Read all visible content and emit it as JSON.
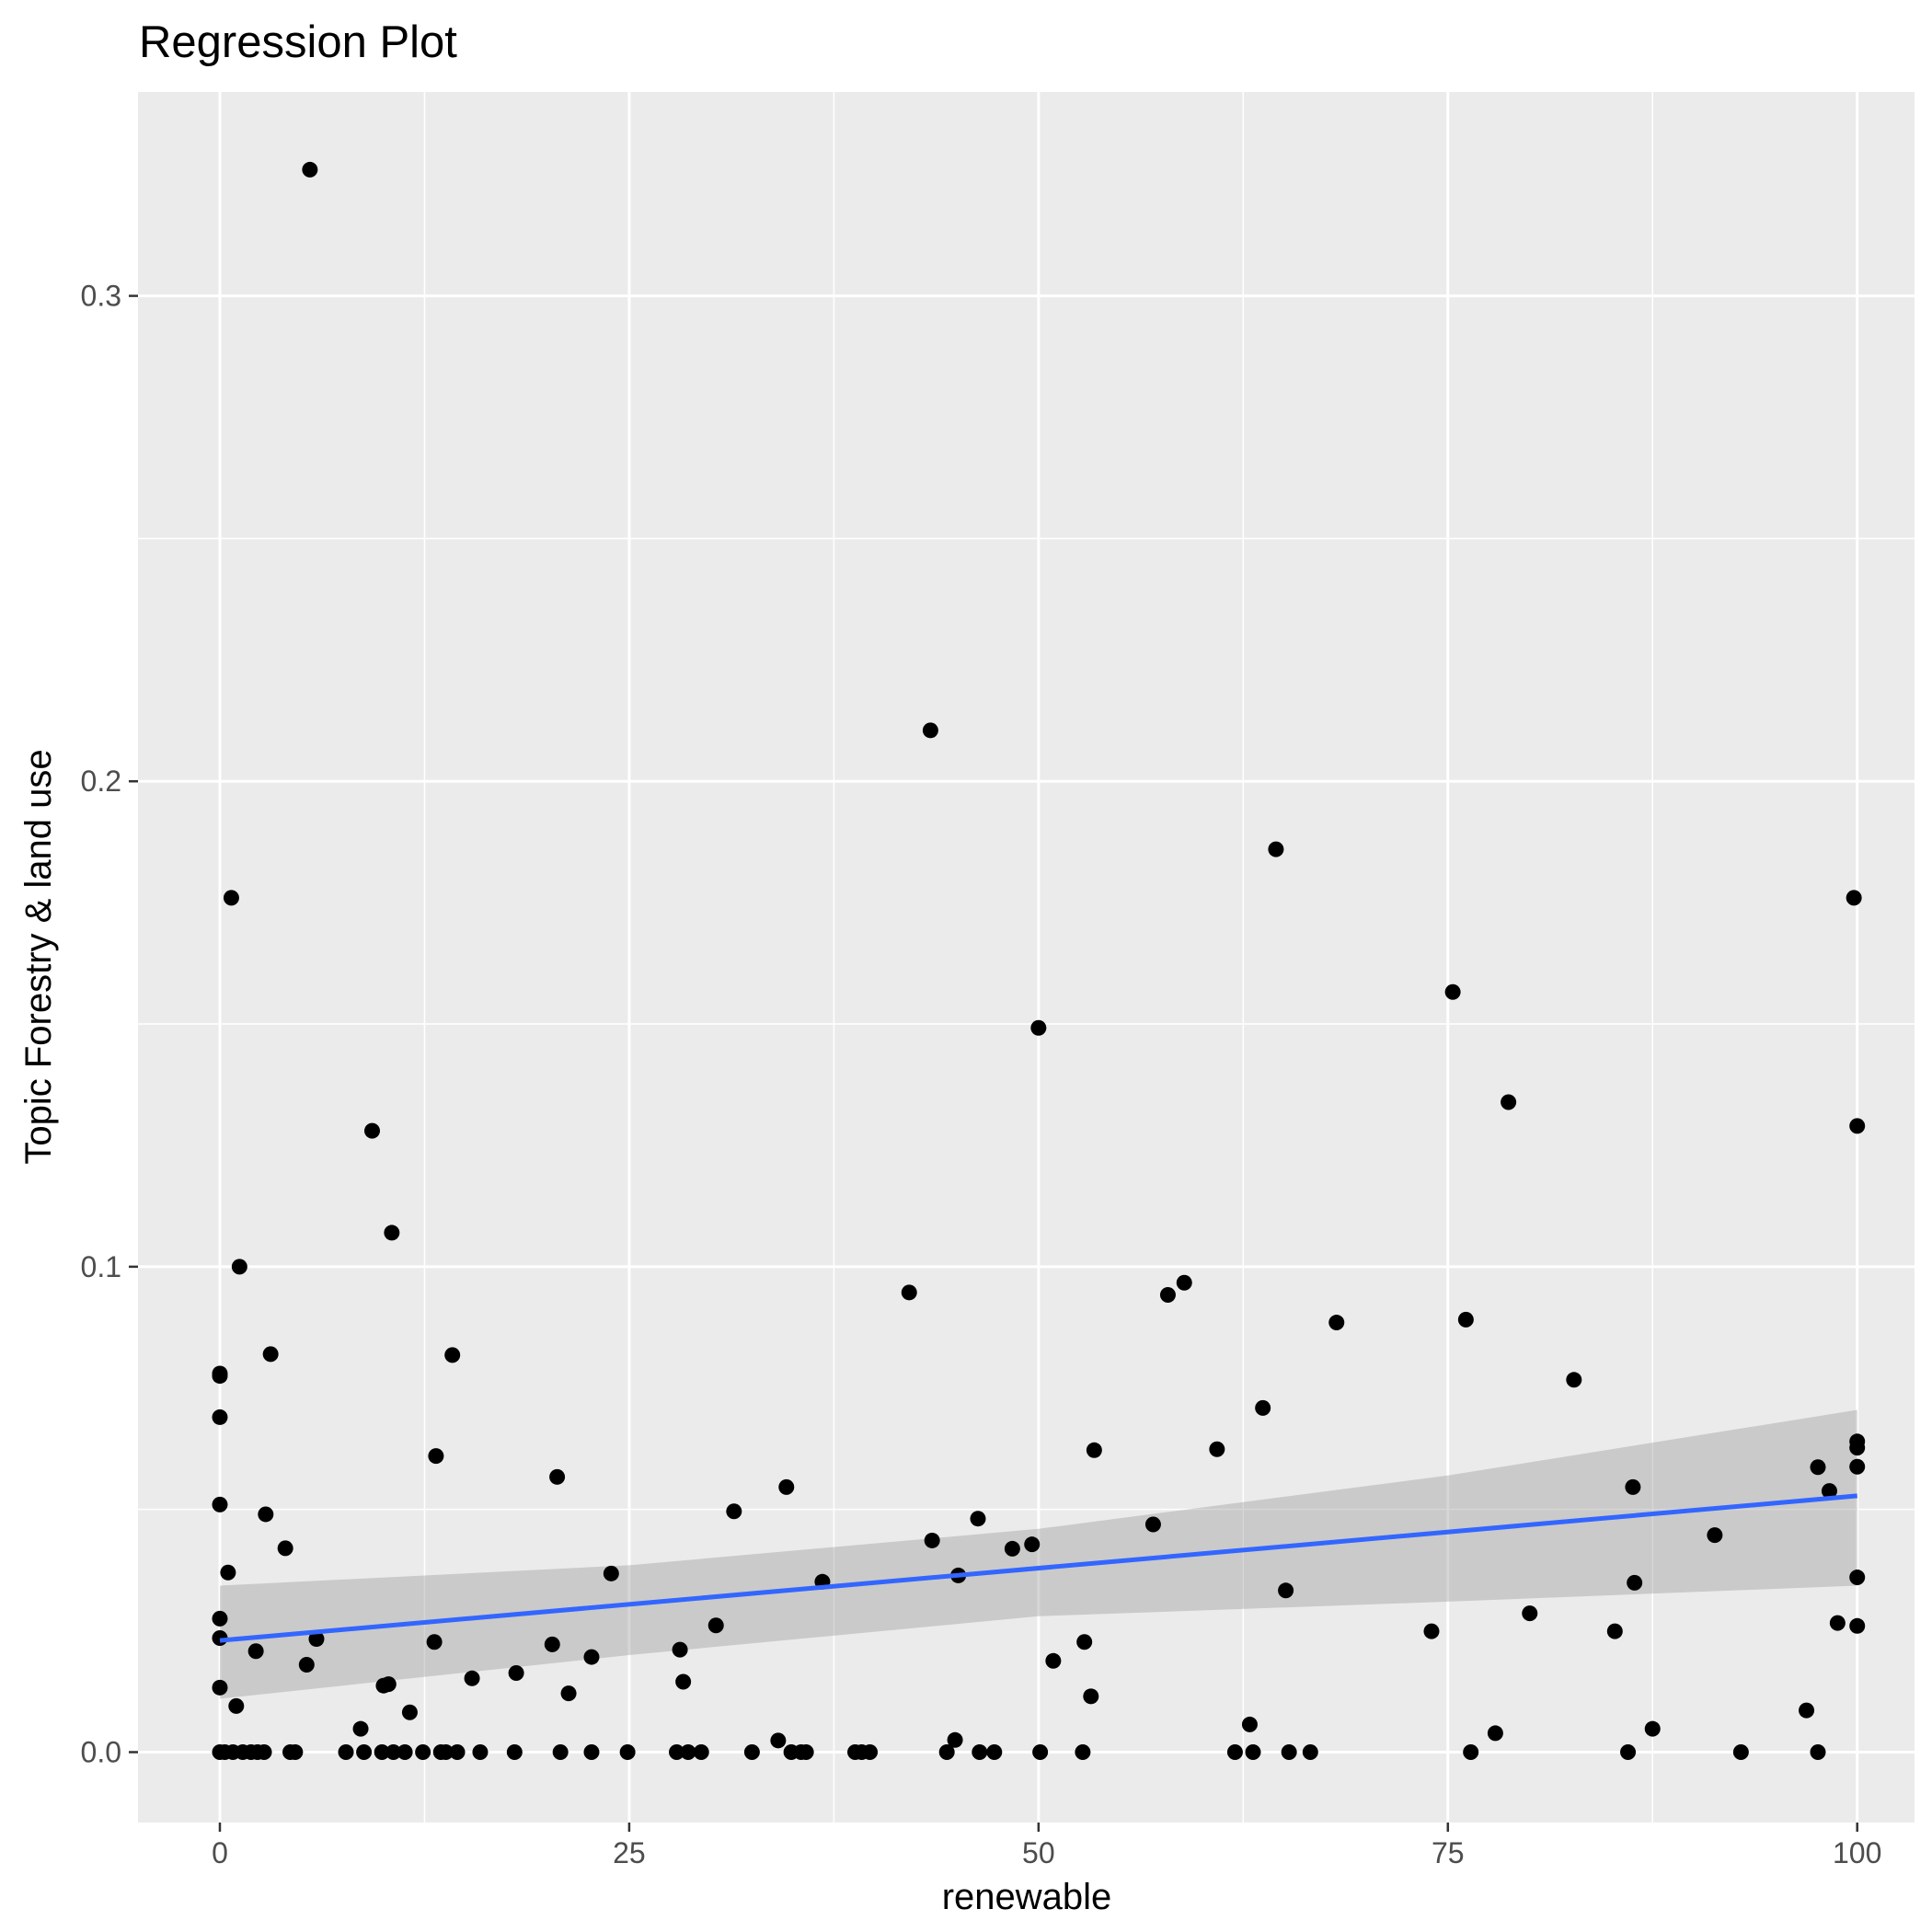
{
  "chart_data": {
    "type": "scatter",
    "title": "Regression Plot",
    "xlabel": "renewable",
    "ylabel": "Topic Forestry & land use",
    "xlim": [
      -5,
      103.5
    ],
    "ylim": [
      -0.0145,
      0.342
    ],
    "x_ticks": [
      0,
      25,
      50,
      75,
      100
    ],
    "x_tick_labels": [
      "0",
      "25",
      "50",
      "75",
      "100"
    ],
    "y_ticks": [
      0.0,
      0.1,
      0.2,
      0.3
    ],
    "y_tick_labels": [
      "0.0",
      "0.1",
      "0.2",
      "0.3"
    ],
    "grid": true,
    "legend": "none",
    "colors": {
      "panel": "#ebebeb",
      "grid": "#ffffff",
      "points": "#000000",
      "fit_line": "#3366ff",
      "confidence_band": "#999999"
    },
    "regression": {
      "line": [
        [
          0,
          0.023
        ],
        [
          100,
          0.0528
        ]
      ],
      "ci_lower": [
        [
          0,
          0.011
        ],
        [
          25,
          0.02
        ],
        [
          50,
          0.028
        ],
        [
          75,
          0.031
        ],
        [
          100,
          0.0343
        ]
      ],
      "ci_upper": [
        [
          0,
          0.0343
        ],
        [
          25,
          0.0385
        ],
        [
          50,
          0.046
        ],
        [
          75,
          0.057
        ],
        [
          100,
          0.0705
        ]
      ]
    },
    "points": [
      [
        5.5,
        0.326
      ],
      [
        0.7,
        0.176
      ],
      [
        1.2,
        0.1
      ],
      [
        9.3,
        0.128
      ],
      [
        10.5,
        0.107
      ],
      [
        0,
        0.078
      ],
      [
        0,
        0.0775
      ],
      [
        0,
        0.069
      ],
      [
        3.1,
        0.082
      ],
      [
        0,
        0.051
      ],
      [
        2.8,
        0.049
      ],
      [
        4.0,
        0.042
      ],
      [
        0.5,
        0.037
      ],
      [
        0,
        0.0275
      ],
      [
        0,
        0.0235
      ],
      [
        2.2,
        0.0208
      ],
      [
        5.9,
        0.0233
      ],
      [
        5.3,
        0.018
      ],
      [
        0,
        0.0133
      ],
      [
        1.0,
        0.0095
      ],
      [
        8.6,
        0.0048
      ],
      [
        10.0,
        0.0137
      ],
      [
        10.3,
        0.014
      ],
      [
        11.6,
        0.0082
      ],
      [
        13.2,
        0.061
      ],
      [
        14.2,
        0.0818
      ],
      [
        13.1,
        0.0227
      ],
      [
        15.4,
        0.0152
      ],
      [
        18.1,
        0.0163
      ],
      [
        20.3,
        0.0222
      ],
      [
        20.6,
        0.0567
      ],
      [
        21.3,
        0.0121
      ],
      [
        22.7,
        0.0196
      ],
      [
        23.9,
        0.0368
      ],
      [
        28.1,
        0.0211
      ],
      [
        28.3,
        0.0145
      ],
      [
        30.3,
        0.0261
      ],
      [
        31.4,
        0.0496
      ],
      [
        34.6,
        0.0546
      ],
      [
        36.8,
        0.0351
      ],
      [
        34.1,
        0.0024
      ],
      [
        42.1,
        0.0947
      ],
      [
        43.4,
        0.2105
      ],
      [
        43.5,
        0.0436
      ],
      [
        45.1,
        0.0364
      ],
      [
        46.3,
        0.0481
      ],
      [
        44.9,
        0.0025
      ],
      [
        48.4,
        0.0419
      ],
      [
        49.6,
        0.0428
      ],
      [
        50.0,
        0.1492
      ],
      [
        50.9,
        0.0188
      ],
      [
        52.8,
        0.0227
      ],
      [
        53.2,
        0.0115
      ],
      [
        53.4,
        0.0622
      ],
      [
        57.0,
        0.0469
      ],
      [
        57.9,
        0.0942
      ],
      [
        58.9,
        0.0967
      ],
      [
        60.9,
        0.0624
      ],
      [
        63.7,
        0.0709
      ],
      [
        64.5,
        0.186
      ],
      [
        65.1,
        0.0333
      ],
      [
        68.2,
        0.0885
      ],
      [
        62.9,
        0.0057
      ],
      [
        74.0,
        0.0249
      ],
      [
        75.3,
        0.1566
      ],
      [
        76.1,
        0.0891
      ],
      [
        77.9,
        0.0039
      ],
      [
        78.7,
        0.1339
      ],
      [
        80.0,
        0.0286
      ],
      [
        82.7,
        0.0767
      ],
      [
        85.2,
        0.0249
      ],
      [
        86.3,
        0.0546
      ],
      [
        86.4,
        0.0349
      ],
      [
        87.5,
        0.0048
      ],
      [
        91.3,
        0.0447
      ],
      [
        96.9,
        0.0086
      ],
      [
        97.6,
        0.0587
      ],
      [
        98.3,
        0.0538
      ],
      [
        98.8,
        0.0266
      ],
      [
        99.8,
        0.176
      ],
      [
        100,
        0.129
      ],
      [
        100,
        0.064
      ],
      [
        100,
        0.0627
      ],
      [
        100,
        0.0588
      ],
      [
        100,
        0.036
      ],
      [
        100,
        0.026
      ],
      [
        0,
        0
      ],
      [
        0.3,
        0
      ],
      [
        0.8,
        0
      ],
      [
        1.4,
        0
      ],
      [
        1.9,
        0
      ],
      [
        2.3,
        0
      ],
      [
        2.7,
        0
      ],
      [
        4.3,
        0
      ],
      [
        4.6,
        0
      ],
      [
        7.7,
        0
      ],
      [
        8.8,
        0
      ],
      [
        9.9,
        0
      ],
      [
        10.6,
        0
      ],
      [
        11.3,
        0
      ],
      [
        12.4,
        0
      ],
      [
        13.5,
        0
      ],
      [
        13.8,
        0
      ],
      [
        14.5,
        0
      ],
      [
        15.9,
        0
      ],
      [
        18.0,
        0
      ],
      [
        20.8,
        0
      ],
      [
        22.7,
        0
      ],
      [
        24.9,
        0
      ],
      [
        27.9,
        0
      ],
      [
        28.6,
        0
      ],
      [
        29.4,
        0
      ],
      [
        32.5,
        0
      ],
      [
        34.9,
        0
      ],
      [
        35.5,
        0
      ],
      [
        35.8,
        0
      ],
      [
        38.8,
        0
      ],
      [
        39.2,
        0
      ],
      [
        39.7,
        0
      ],
      [
        44.4,
        0
      ],
      [
        46.4,
        0
      ],
      [
        47.3,
        0
      ],
      [
        50.1,
        0
      ],
      [
        52.7,
        0
      ],
      [
        62.0,
        0
      ],
      [
        63.1,
        0
      ],
      [
        65.3,
        0
      ],
      [
        66.6,
        0
      ],
      [
        76.4,
        0
      ],
      [
        86.0,
        0
      ],
      [
        92.9,
        0
      ],
      [
        97.6,
        0
      ]
    ]
  }
}
